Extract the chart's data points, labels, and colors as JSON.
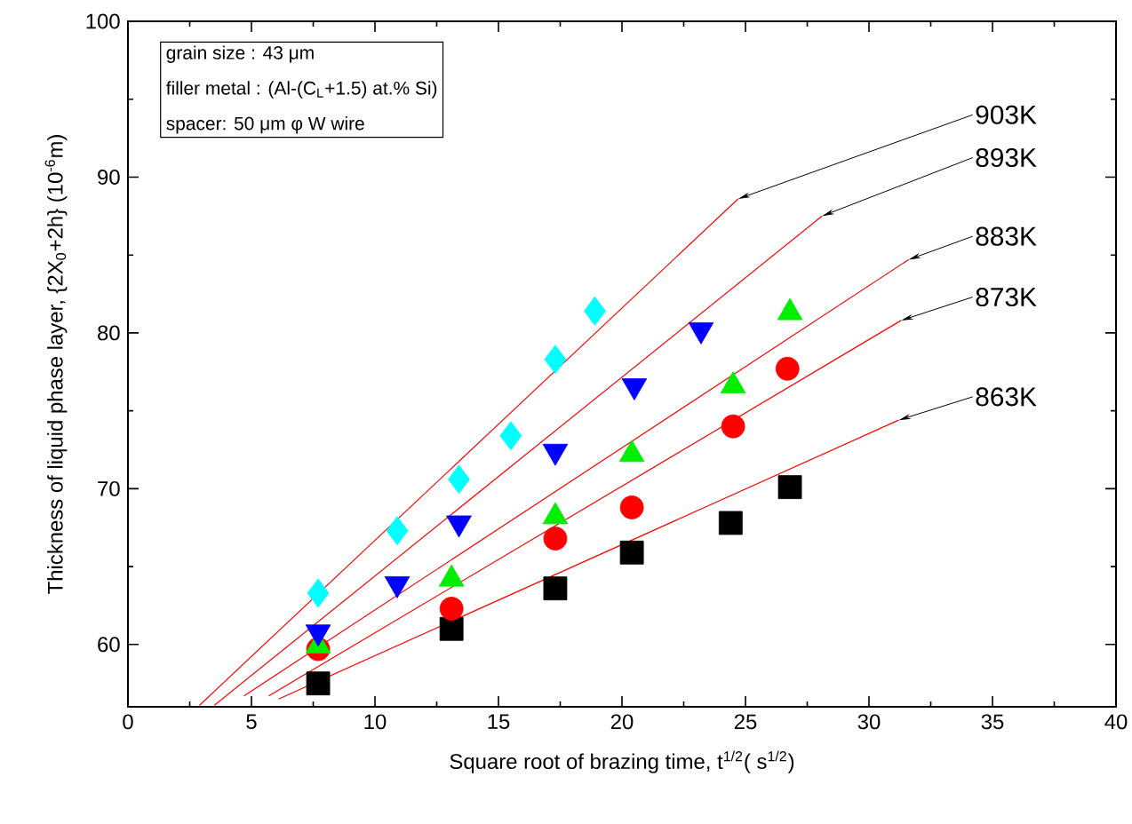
{
  "chart_data": {
    "type": "scatter",
    "xlabel": "Square root of brazing time, t$^{1/2}$( s$^{1/2}$)",
    "ylabel": "Thickness of liquid phase layer, {2X$_{0}$+2h} (10$^{-6}$m)",
    "xlim": [
      0,
      40
    ],
    "ylim": [
      56,
      100
    ],
    "xticks": [
      0,
      5,
      10,
      15,
      20,
      25,
      30,
      35,
      40
    ],
    "yticks": [
      60,
      70,
      80,
      90,
      100
    ],
    "series": [
      {
        "marker": "square",
        "color": "#000000",
        "x": [
          7.7,
          13.1,
          17.3,
          20.4,
          24.4,
          26.8
        ],
        "values": [
          57.5,
          61.0,
          63.6,
          65.9,
          67.8,
          70.1
        ]
      },
      {
        "marker": "circle",
        "color": "#ff0000",
        "x": [
          7.7,
          13.1,
          17.3,
          20.4,
          24.5,
          26.7
        ],
        "values": [
          59.7,
          62.3,
          66.8,
          68.8,
          74.0,
          77.7
        ]
      },
      {
        "marker": "triangle",
        "color": "#00ee00",
        "x": [
          7.7,
          13.1,
          17.3,
          20.4,
          24.5,
          26.8
        ],
        "values": [
          59.9,
          64.2,
          68.2,
          72.2,
          76.6,
          81.3
        ]
      },
      {
        "marker": "triangle-down",
        "color": "#0000ff",
        "x": [
          7.7,
          10.9,
          13.4,
          17.3,
          20.5,
          23.2
        ],
        "values": [
          60.8,
          63.9,
          67.8,
          72.4,
          76.6,
          80.2
        ]
      },
      {
        "marker": "diamond",
        "color": "#00ffff",
        "x": [
          7.7,
          10.9,
          13.4,
          15.5,
          17.3,
          18.9
        ],
        "values": [
          63.3,
          67.3,
          70.6,
          73.4,
          78.3,
          81.4
        ]
      },
      {
        "type": "line",
        "color": "#ff0000",
        "x": [
          6.1,
          31.2
        ],
        "values": [
          56.5,
          74.4
        ]
      },
      {
        "type": "line",
        "color": "#ff0000",
        "x": [
          5.7,
          31.3
        ],
        "values": [
          56.7,
          80.8
        ]
      },
      {
        "type": "line",
        "color": "#ff0000",
        "x": [
          4.7,
          31.6
        ],
        "values": [
          56.7,
          84.7
        ]
      },
      {
        "type": "line",
        "color": "#ff0000",
        "x": [
          3.5,
          28.1
        ],
        "values": [
          56.1,
          87.5
        ]
      },
      {
        "type": "line",
        "color": "#ff0000",
        "x": [
          2.9,
          24.7
        ],
        "values": [
          56.1,
          88.6
        ]
      }
    ],
    "annotations": [
      "grain size   : 43 μm",
      "filler metal : (Al-(C$_{L}$+1.5) at.% Si)",
      "spacer: 50 μm φ W wire",
      {
        "text": "903K",
        "x": 24.7,
        "y": 88.6
      },
      {
        "text": "893K",
        "x": 28.1,
        "y": 87.5
      },
      {
        "text": "883K",
        "x": 31.6,
        "y": 84.7
      },
      {
        "text": "873K",
        "x": 31.3,
        "y": 80.8
      },
      {
        "text": "863K",
        "x": 31.2,
        "y": 74.4
      }
    ]
  }
}
